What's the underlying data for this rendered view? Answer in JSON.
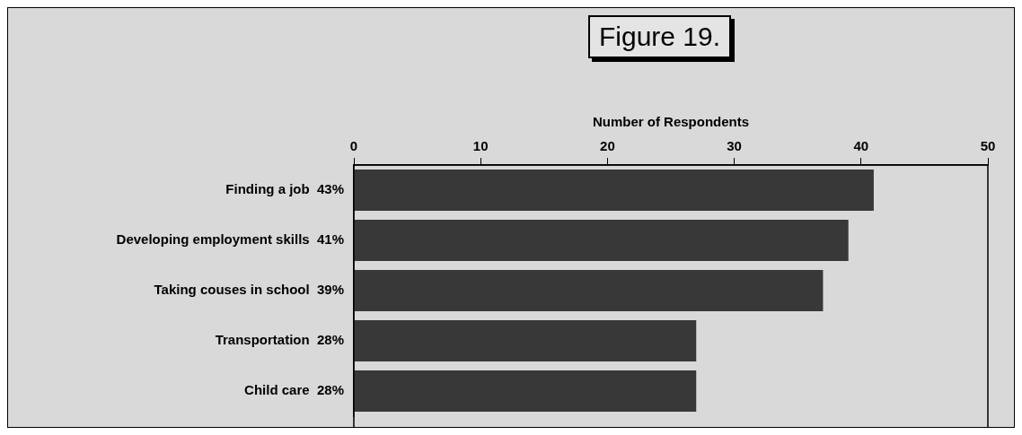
{
  "chart_data": {
    "type": "bar",
    "orientation": "horizontal",
    "title": "Figure 19.",
    "xlabel": "Number of Respondents",
    "categories": [
      "Finding a job  43%",
      "Developing employment skills  41%",
      "Taking couses in school  39%",
      "Transportation  28%",
      "Child care  28%"
    ],
    "values": [
      41,
      39,
      37,
      27,
      27
    ],
    "color": "#383838",
    "xlim": [
      0,
      50
    ],
    "xticks": [
      0,
      10,
      20,
      30,
      40,
      50
    ],
    "grid": false,
    "legend": false
  }
}
